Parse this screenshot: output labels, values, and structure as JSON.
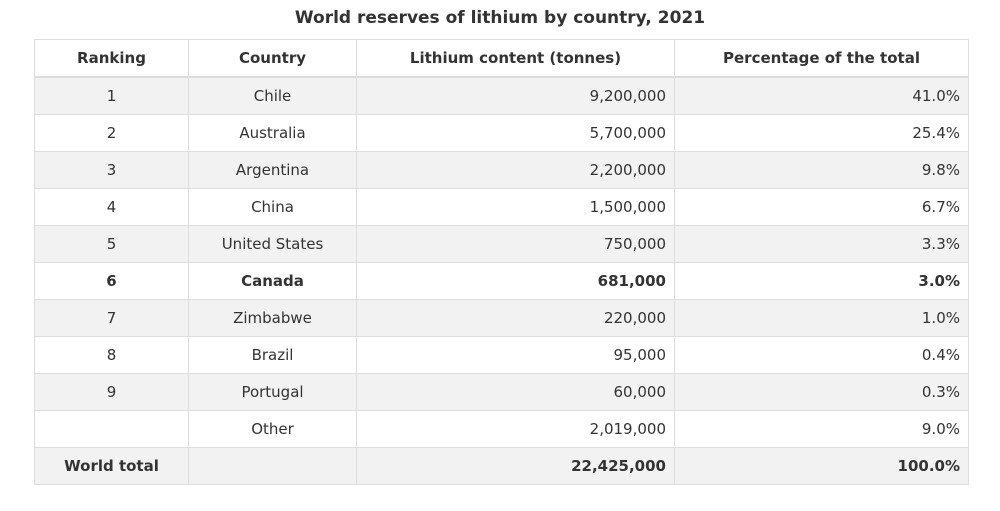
{
  "title": "World reserves of lithium by country, 2021",
  "columns": [
    "Ranking",
    "Country",
    "Lithium content (tonnes)",
    "Percentage of the total"
  ],
  "rows": [
    {
      "rank": "1",
      "country": "Chile",
      "tonnes": "9,200,000",
      "pct": "41.0%",
      "bold": false
    },
    {
      "rank": "2",
      "country": "Australia",
      "tonnes": "5,700,000",
      "pct": "25.4%",
      "bold": false
    },
    {
      "rank": "3",
      "country": "Argentina",
      "tonnes": "2,200,000",
      "pct": "9.8%",
      "bold": false
    },
    {
      "rank": "4",
      "country": "China",
      "tonnes": "1,500,000",
      "pct": "6.7%",
      "bold": false
    },
    {
      "rank": "5",
      "country": "United States",
      "tonnes": "750,000",
      "pct": "3.3%",
      "bold": false
    },
    {
      "rank": "6",
      "country": "Canada",
      "tonnes": "681,000",
      "pct": "3.0%",
      "bold": true
    },
    {
      "rank": "7",
      "country": "Zimbabwe",
      "tonnes": "220,000",
      "pct": "1.0%",
      "bold": false
    },
    {
      "rank": "8",
      "country": "Brazil",
      "tonnes": "95,000",
      "pct": "0.4%",
      "bold": false
    },
    {
      "rank": "9",
      "country": "Portugal",
      "tonnes": "60,000",
      "pct": "0.3%",
      "bold": false
    },
    {
      "rank": "",
      "country": "Other",
      "tonnes": "2,019,000",
      "pct": "9.0%",
      "bold": false
    },
    {
      "rank": "World total",
      "country": "",
      "tonnes": "22,425,000",
      "pct": "100.0%",
      "bold": true
    }
  ]
}
